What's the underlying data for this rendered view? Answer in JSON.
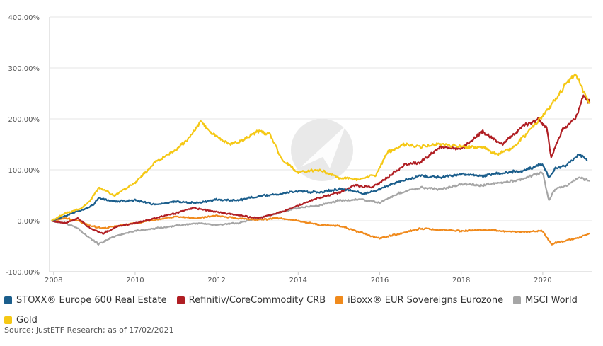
{
  "chart_data": {
    "type": "line",
    "title": "",
    "xlabel": "",
    "ylabel": "",
    "xlim": [
      2007.9,
      2021.2
    ],
    "ylim": [
      -100,
      400
    ],
    "x_ticks": [
      2008,
      2010,
      2012,
      2014,
      2016,
      2018,
      2020
    ],
    "x_tick_labels": [
      "2008",
      "2010",
      "2012",
      "2014",
      "2016",
      "2018",
      "2020"
    ],
    "y_ticks": [
      -100,
      0,
      100,
      200,
      300,
      400
    ],
    "y_tick_labels": [
      "-100.00%",
      "0.00%",
      "100.00%",
      "200.00%",
      "300.00%",
      "400.00%"
    ],
    "grid": "horizontal",
    "legend_position": "bottom-left",
    "series": [
      {
        "name": "STOXX® Europe 600 Real Estate",
        "color": "#1b5e8c",
        "x": [
          2007.95,
          2008.3,
          2008.7,
          2008.95,
          2009.1,
          2009.5,
          2010,
          2010.5,
          2011,
          2011.5,
          2012,
          2012.5,
          2013,
          2013.5,
          2014,
          2014.5,
          2015,
          2015.3,
          2015.6,
          2016,
          2016.5,
          2017,
          2017.5,
          2018,
          2018.5,
          2019,
          2019.5,
          2020,
          2020.15,
          2020.3,
          2020.6,
          2020.9,
          2021.1
        ],
        "values": [
          0,
          10,
          22,
          30,
          45,
          38,
          40,
          32,
          38,
          35,
          42,
          40,
          48,
          52,
          58,
          56,
          62,
          60,
          52,
          62,
          78,
          88,
          85,
          92,
          88,
          94,
          98,
          112,
          85,
          102,
          110,
          130,
          118
        ]
      },
      {
        "name": "Refinitiv/CoreCommodity CRB",
        "color": "#b01e23",
        "x": [
          2007.95,
          2008.3,
          2008.6,
          2008.9,
          2009.2,
          2009.6,
          2010,
          2010.5,
          2011,
          2011.4,
          2011.8,
          2012.2,
          2012.6,
          2013,
          2013.5,
          2014,
          2014.5,
          2015,
          2015.4,
          2015.8,
          2016.2,
          2016.6,
          2017,
          2017.5,
          2018,
          2018.5,
          2019,
          2019.5,
          2019.9,
          2020.1,
          2020.2,
          2020.5,
          2020.8,
          2021.0,
          2021.15
        ],
        "values": [
          0,
          -5,
          5,
          -15,
          -25,
          -10,
          -5,
          5,
          15,
          25,
          20,
          15,
          10,
          5,
          15,
          30,
          45,
          55,
          70,
          65,
          85,
          110,
          115,
          145,
          140,
          175,
          150,
          185,
          200,
          180,
          125,
          180,
          200,
          245,
          232
        ]
      },
      {
        "name": "iBoxx® EUR Sovereigns Eurozone",
        "color": "#f08a1c",
        "x": [
          2007.95,
          2008.3,
          2008.6,
          2008.9,
          2009.2,
          2009.6,
          2010,
          2010.5,
          2011,
          2011.5,
          2012,
          2012.5,
          2013,
          2013.5,
          2014,
          2014.5,
          2015,
          2015.5,
          2016,
          2016.5,
          2017,
          2017.5,
          2018,
          2018.5,
          2019,
          2019.5,
          2020,
          2020.2,
          2020.4,
          2020.8,
          2021.15
        ],
        "values": [
          0,
          5,
          0,
          -10,
          -15,
          -10,
          -5,
          2,
          8,
          5,
          10,
          5,
          2,
          5,
          0,
          -8,
          -10,
          -22,
          -35,
          -25,
          -15,
          -18,
          -20,
          -18,
          -20,
          -22,
          -20,
          -45,
          -42,
          -35,
          -25
        ]
      },
      {
        "name": "MSCI World",
        "color": "#a6a6a6",
        "x": [
          2007.95,
          2008.3,
          2008.6,
          2008.9,
          2009.1,
          2009.5,
          2010,
          2010.5,
          2011,
          2011.5,
          2012,
          2012.5,
          2013,
          2013.5,
          2014,
          2014.5,
          2015,
          2015.5,
          2016,
          2016.5,
          2017,
          2017.5,
          2018,
          2018.5,
          2019,
          2019.5,
          2020,
          2020.15,
          2020.3,
          2020.6,
          2020.9,
          2021.15
        ],
        "values": [
          0,
          -5,
          -15,
          -35,
          -45,
          -30,
          -20,
          -15,
          -10,
          -5,
          -8,
          -5,
          5,
          15,
          25,
          30,
          40,
          42,
          35,
          55,
          65,
          62,
          72,
          70,
          75,
          82,
          95,
          40,
          62,
          70,
          85,
          78
        ]
      },
      {
        "name": "Gold",
        "color": "#f5c815",
        "x": [
          2007.95,
          2008.3,
          2008.7,
          2008.9,
          2009.1,
          2009.5,
          2010,
          2010.5,
          2011,
          2011.3,
          2011.6,
          2011.9,
          2012.3,
          2012.7,
          2013.0,
          2013.3,
          2013.6,
          2014,
          2014.5,
          2015,
          2015.5,
          2015.9,
          2016.2,
          2016.6,
          2017,
          2017.5,
          2018,
          2018.5,
          2018.9,
          2019.3,
          2019.7,
          2020.1,
          2020.4,
          2020.6,
          2020.8,
          2021.0,
          2021.15
        ],
        "values": [
          0,
          15,
          25,
          40,
          65,
          50,
          75,
          115,
          140,
          160,
          195,
          170,
          150,
          160,
          175,
          170,
          120,
          95,
          100,
          85,
          80,
          90,
          135,
          150,
          145,
          150,
          145,
          145,
          130,
          145,
          180,
          215,
          250,
          270,
          290,
          255,
          230
        ]
      }
    ]
  },
  "source": "Source: justETF Research; as of 17/02/2021"
}
